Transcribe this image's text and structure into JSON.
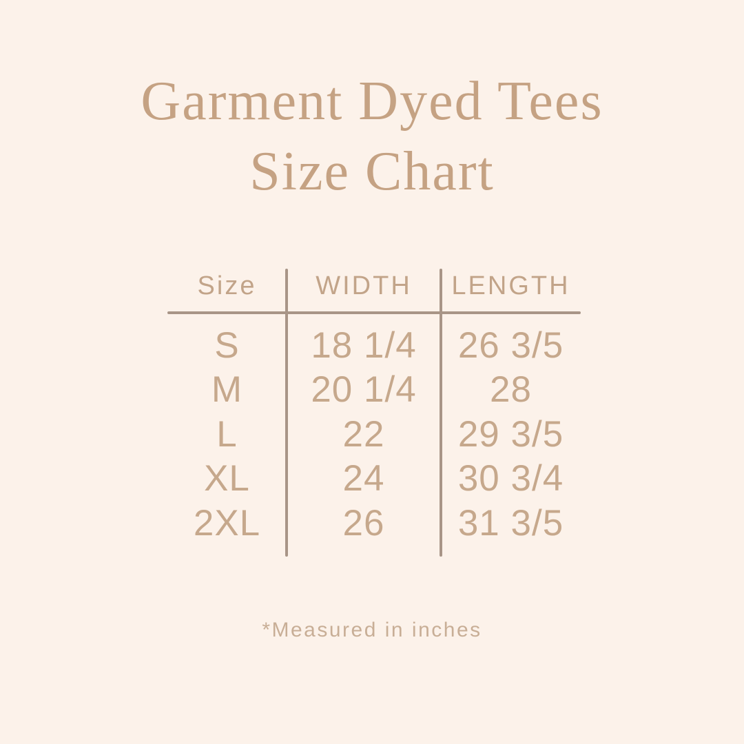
{
  "colors": {
    "background": "#FCF2EA",
    "title_text": "#C5A283",
    "header_text": "#C2A489",
    "table_text": "#C6A88C",
    "footnote_text": "#C8AE96",
    "line": "#A89587"
  },
  "title": {
    "line1": "Garment Dyed Tees",
    "line2": "Size Chart"
  },
  "table": {
    "headers": {
      "size": "Size",
      "width": "WIDTH",
      "length": "LENGTH"
    },
    "rows": [
      {
        "size": "S",
        "width": "18 1/4",
        "length": "26 3/5"
      },
      {
        "size": "M",
        "width": "20 1/4",
        "length": "28"
      },
      {
        "size": "L",
        "width": "22",
        "length": "29 3/5"
      },
      {
        "size": "XL",
        "width": "24",
        "length": "30 3/4"
      },
      {
        "size": "2XL",
        "width": "26",
        "length": "31 3/5"
      }
    ]
  },
  "footnote": "*Measured in inches",
  "chart_data": {
    "type": "table",
    "title": "Garment Dyed Tees Size Chart",
    "columns": [
      "Size",
      "WIDTH",
      "LENGTH"
    ],
    "rows": [
      [
        "S",
        "18 1/4",
        "26 3/5"
      ],
      [
        "M",
        "20 1/4",
        "28"
      ],
      [
        "L",
        "22",
        "29 3/5"
      ],
      [
        "XL",
        "24",
        "30 3/4"
      ],
      [
        "2XL",
        "26",
        "31 3/5"
      ]
    ],
    "units": "inches",
    "note": "*Measured in inches"
  }
}
